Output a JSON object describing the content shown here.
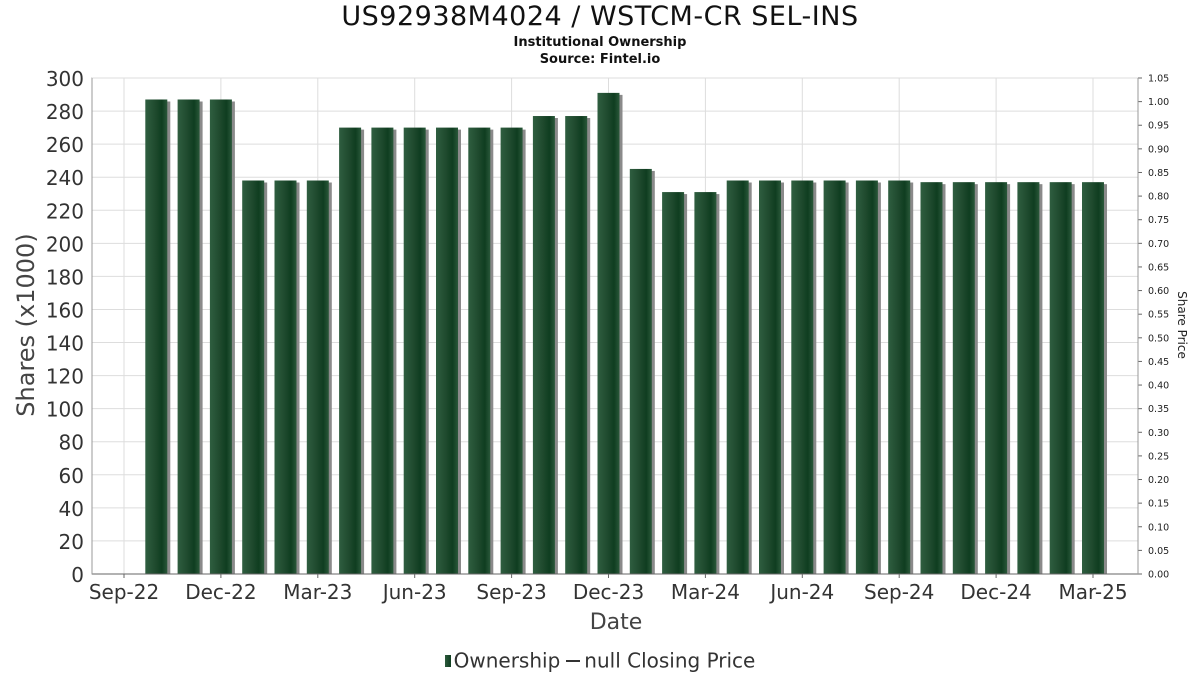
{
  "title": "US92938M4024 / WSTCM-CR SEL-INS",
  "subtitle": "Institutional Ownership",
  "source": "Source: Fintel.io",
  "legend": {
    "ownership": "Ownership",
    "price": "null Closing Price"
  },
  "colors": {
    "bar_dark": "#0f3d20",
    "bar_light": "#2f5e40",
    "bar_shadow": "#8a8a8a",
    "grid": "#dddddd"
  },
  "chart_data": {
    "type": "bar",
    "title": "US92938M4024 / WSTCM-CR SEL-INS",
    "subtitle": "Institutional Ownership",
    "xlabel": "Date",
    "ylabel": "Shares (x1000)",
    "y2label": "Share Price",
    "ylim": [
      0,
      300
    ],
    "y2lim": [
      0,
      1.05
    ],
    "grid": true,
    "legend_position": "bottom",
    "x_tick_labels": [
      "Sep-22",
      "Dec-22",
      "Mar-23",
      "Jun-23",
      "Sep-23",
      "Dec-23",
      "Mar-24",
      "Jun-24",
      "Sep-24",
      "Dec-24",
      "Mar-25"
    ],
    "y_ticks": [
      "0",
      "20",
      "40",
      "60",
      "80",
      "100",
      "120",
      "140",
      "160",
      "180",
      "200",
      "220",
      "240",
      "260",
      "280",
      "300"
    ],
    "y2_ticks": [
      "0.00",
      "0.05",
      "0.10",
      "0.15",
      "0.20",
      "0.25",
      "0.30",
      "0.35",
      "0.40",
      "0.45",
      "0.50",
      "0.55",
      "0.60",
      "0.65",
      "0.70",
      "0.75",
      "0.80",
      "0.85",
      "0.90",
      "0.95",
      "1.00",
      "1.05"
    ],
    "series": [
      {
        "name": "Ownership",
        "values": [
          287,
          287,
          287,
          238,
          238,
          238,
          270,
          270,
          270,
          270,
          270,
          270,
          277,
          277,
          291,
          245,
          231,
          231,
          238,
          238,
          238,
          238,
          238,
          238,
          237,
          237,
          237,
          237,
          237,
          237
        ]
      }
    ]
  }
}
